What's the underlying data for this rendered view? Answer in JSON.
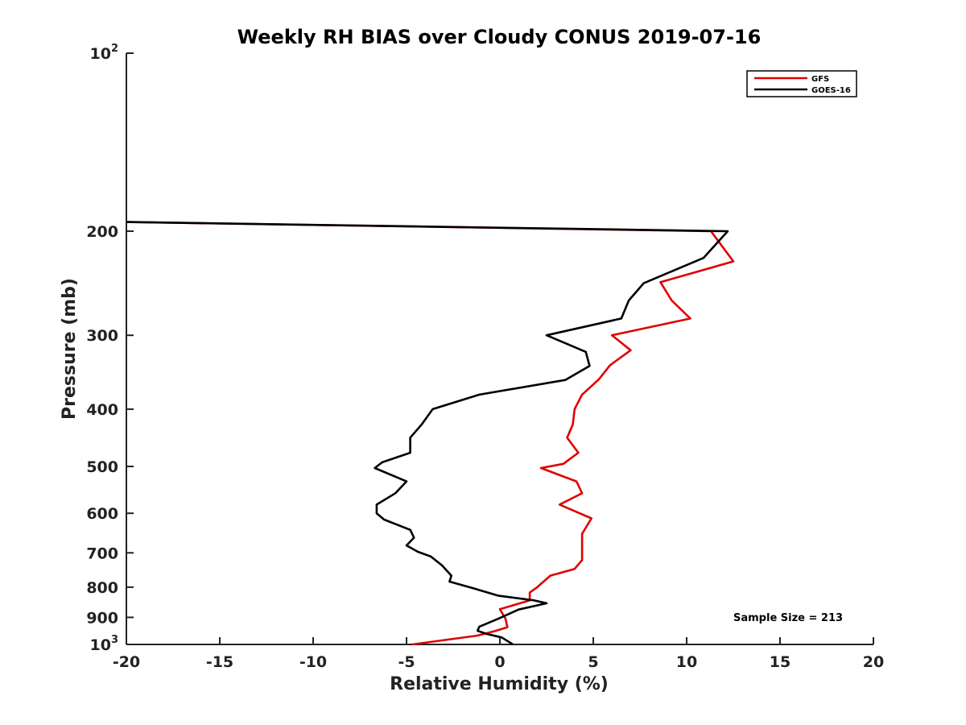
{
  "chart_data": {
    "type": "line",
    "title": "Weekly RH BIAS over Cloudy CONUS 2019-07-16",
    "xlabel": "Relative Humidity (%)",
    "ylabel": "Pressure (mb)",
    "xlim": [
      -20,
      20
    ],
    "ylim": [
      100,
      1000
    ],
    "y_scale": "log",
    "y_reversed": true,
    "x_ticks": [
      -20,
      -15,
      -10,
      -5,
      0,
      5,
      10,
      15,
      20
    ],
    "x_tick_labels": [
      "-20",
      "-15",
      "-10",
      "-5",
      "0",
      "5",
      "10",
      "15",
      "20"
    ],
    "y_ticks": [
      {
        "value": 100,
        "base": "10",
        "exp": "2"
      },
      {
        "value": 200,
        "label": "200"
      },
      {
        "value": 300,
        "label": "300"
      },
      {
        "value": 400,
        "label": "400"
      },
      {
        "value": 500,
        "label": "500"
      },
      {
        "value": 600,
        "label": "600"
      },
      {
        "value": 700,
        "label": "700"
      },
      {
        "value": 800,
        "label": "800"
      },
      {
        "value": 900,
        "label": "900"
      },
      {
        "value": 1000,
        "base": "10",
        "exp": "3"
      }
    ],
    "legend_position": "top-right",
    "grid": false,
    "annotation": "Sample Size = 213",
    "series": [
      {
        "name": "GFS",
        "color": "#e00000",
        "points": [
          [
            -20,
            193
          ],
          [
            11.3,
            200
          ],
          [
            12.5,
            225
          ],
          [
            8.6,
            244
          ],
          [
            9.2,
            262
          ],
          [
            10.2,
            281
          ],
          [
            6,
            300
          ],
          [
            7,
            318
          ],
          [
            5.9,
            337
          ],
          [
            5.3,
            356
          ],
          [
            4.4,
            378
          ],
          [
            4,
            400
          ],
          [
            3.9,
            425
          ],
          [
            3.6,
            447
          ],
          [
            4.2,
            474
          ],
          [
            3.4,
            495
          ],
          [
            2.2,
            503
          ],
          [
            4.1,
            530
          ],
          [
            4.4,
            555
          ],
          [
            3.2,
            580
          ],
          [
            4.9,
            612
          ],
          [
            4.4,
            650
          ],
          [
            4.4,
            720
          ],
          [
            4,
            745
          ],
          [
            2.7,
            765
          ],
          [
            2,
            800
          ],
          [
            1.6,
            817
          ],
          [
            1.6,
            842
          ],
          [
            0,
            872
          ],
          [
            0.3,
            905
          ],
          [
            0.4,
            935
          ],
          [
            -0.3,
            950
          ],
          [
            -1.2,
            966
          ],
          [
            -4.7,
            1000
          ]
        ]
      },
      {
        "name": "GOES-16",
        "color": "#000000",
        "points": [
          [
            -20,
            193
          ],
          [
            12.2,
            200
          ],
          [
            10.9,
            222
          ],
          [
            7.7,
            245
          ],
          [
            6.9,
            262
          ],
          [
            6.5,
            281
          ],
          [
            2.5,
            300
          ],
          [
            4.6,
            320
          ],
          [
            4.8,
            338
          ],
          [
            3.5,
            357
          ],
          [
            -1.1,
            378
          ],
          [
            -3.6,
            400
          ],
          [
            -4.2,
            425
          ],
          [
            -4.8,
            447
          ],
          [
            -4.8,
            474
          ],
          [
            -6.3,
            492
          ],
          [
            -6.7,
            503
          ],
          [
            -5,
            530
          ],
          [
            -5.6,
            555
          ],
          [
            -6.6,
            580
          ],
          [
            -6.6,
            600
          ],
          [
            -6.2,
            615
          ],
          [
            -4.8,
            640
          ],
          [
            -4.6,
            660
          ],
          [
            -5,
            680
          ],
          [
            -4.4,
            697
          ],
          [
            -3.7,
            710
          ],
          [
            -3.1,
            735
          ],
          [
            -2.6,
            765
          ],
          [
            -2.7,
            783
          ],
          [
            -1.5,
            802
          ],
          [
            -0.1,
            827
          ],
          [
            1.8,
            842
          ],
          [
            2.5,
            852
          ],
          [
            1,
            873
          ],
          [
            -0.1,
            905
          ],
          [
            -1.1,
            933
          ],
          [
            -1.2,
            948
          ],
          [
            -0.7,
            960
          ],
          [
            0.1,
            973
          ],
          [
            0.7,
            1000
          ]
        ]
      }
    ]
  }
}
